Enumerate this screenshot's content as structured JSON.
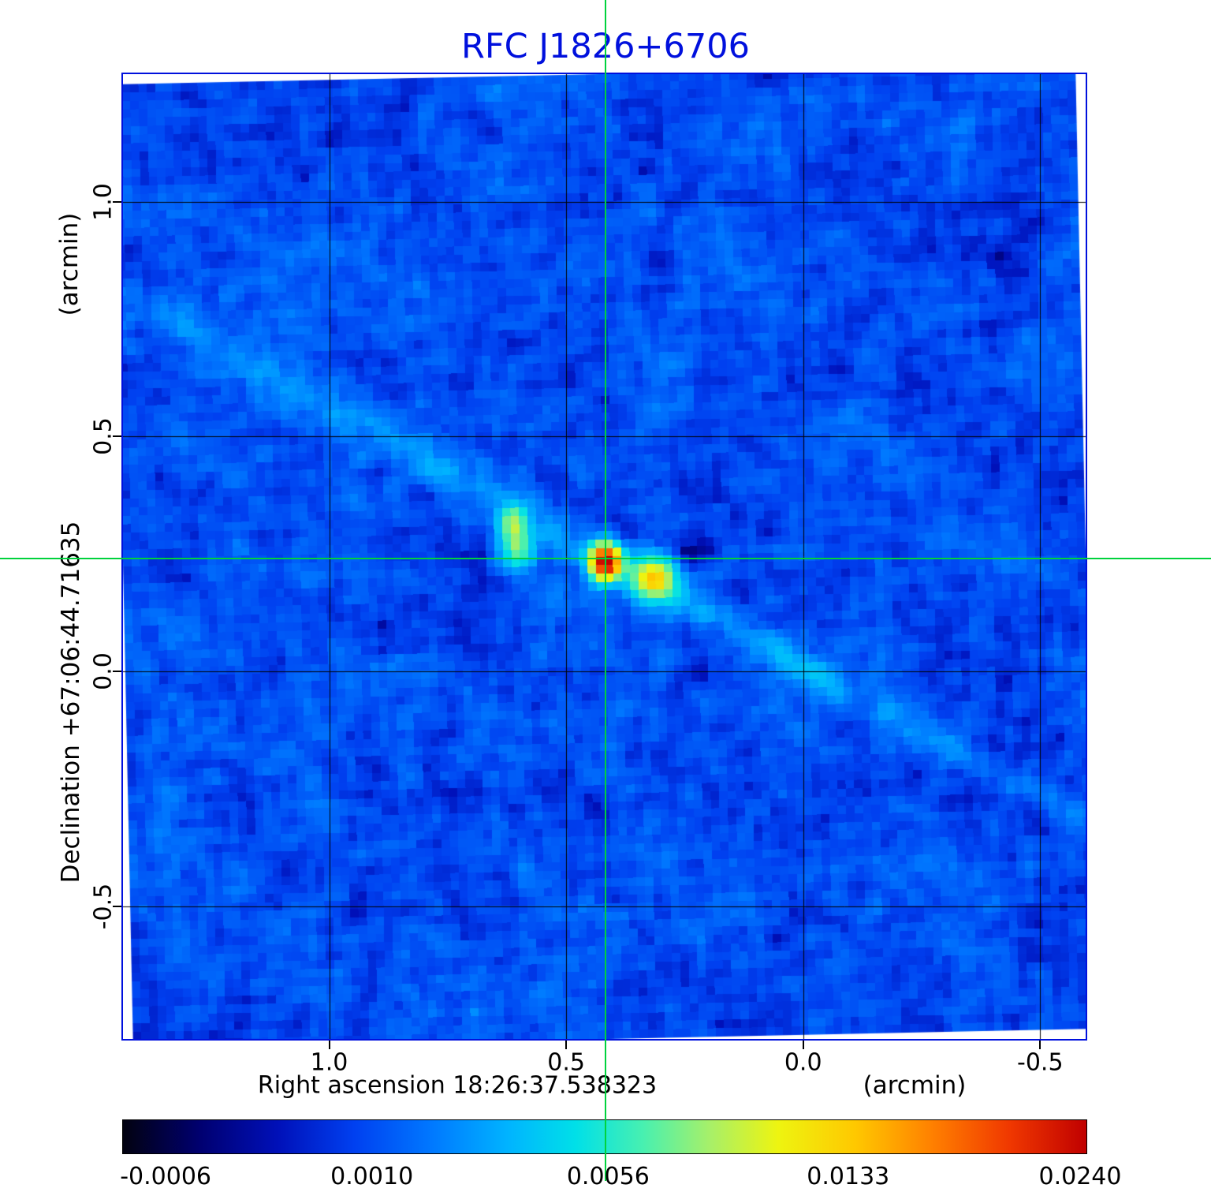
{
  "title": {
    "text": "RFC J1826+6706",
    "color": "#0010dd"
  },
  "axes": {
    "x": {
      "label": "Right ascension  18:26:37.538323",
      "unit": "(arcmin)",
      "tick_labels": [
        "1.0",
        "0.5",
        "0.0",
        "-0.5"
      ]
    },
    "y": {
      "label": "Declination  +67:06:44.71635",
      "unit": "(arcmin)",
      "tick_labels": [
        "1.0",
        "0.5",
        "0.0",
        "-0.5"
      ]
    }
  },
  "colorbar": {
    "tick_labels": [
      "-0.0006",
      "0.0010",
      "0.0056",
      "0.0133",
      "0.0240"
    ]
  },
  "chart_data": {
    "type": "heatmap",
    "title": "RFC J1826+6706",
    "xlabel": "Right ascension 18:26:37.538323 (arcmin)",
    "ylabel": "Declination +67:06:44.71635 (arcmin)",
    "x_ticks": [
      1.0,
      0.5,
      0.0,
      -0.5
    ],
    "y_ticks": [
      1.0,
      0.5,
      0.0,
      -0.5
    ],
    "x_tick_labels": [
      "1.0",
      "0.5",
      "0.0",
      "-0.5"
    ],
    "y_tick_labels": [
      "1.0",
      "0.5",
      "0.0",
      "-0.5"
    ],
    "x_range": [
      1.435,
      -0.596
    ],
    "y_range": [
      1.272,
      -0.783
    ],
    "grid": true,
    "crosshair": {
      "x": 0.417,
      "y": 0.24,
      "color": "#00d23c"
    },
    "color_scale": {
      "vmin": -0.00065,
      "vmax": 0.024,
      "transform": "sqrt",
      "tick_values": [
        -0.0006,
        0.001,
        0.0056,
        0.0133,
        0.024
      ],
      "tick_labels": [
        "-0.0006",
        "0.0010",
        "0.0056",
        "0.0133",
        "0.0240"
      ]
    },
    "colormap_stops": [
      [
        0.0,
        "#020210"
      ],
      [
        0.08,
        "#000070"
      ],
      [
        0.16,
        "#0010b8"
      ],
      [
        0.24,
        "#0040f0"
      ],
      [
        0.32,
        "#0078ff"
      ],
      [
        0.4,
        "#00b4ff"
      ],
      [
        0.47,
        "#00e0e8"
      ],
      [
        0.54,
        "#48f0b0"
      ],
      [
        0.61,
        "#a8f068"
      ],
      [
        0.68,
        "#eef410"
      ],
      [
        0.76,
        "#ffc800"
      ],
      [
        0.84,
        "#ff8000"
      ],
      [
        0.92,
        "#f03800"
      ],
      [
        1.0,
        "#c00000"
      ]
    ],
    "noise": {
      "mean": 0.001,
      "seed": 77,
      "cells": 114,
      "fine_amp": 0.0005,
      "mid_amp": 0.00045,
      "broad_amp": 0.0003
    },
    "raster_rotation_deg": 1.2,
    "sources": [
      {
        "name": "core",
        "x": 0.417,
        "y": 0.233,
        "amp": 0.0245,
        "sx": 0.021,
        "sy": 0.024
      },
      {
        "name": "knot-east-north",
        "x": 0.61,
        "y": 0.317,
        "amp": 0.0066,
        "sx": 0.022,
        "sy": 0.028
      },
      {
        "name": "knot-east-south",
        "x": 0.603,
        "y": 0.258,
        "amp": 0.0058,
        "sx": 0.024,
        "sy": 0.026
      },
      {
        "name": "knot-west",
        "x": 0.317,
        "y": 0.196,
        "amp": 0.0108,
        "sx": 0.03,
        "sy": 0.03
      },
      {
        "name": "dip-west",
        "x": 0.234,
        "y": 0.257,
        "amp": -0.0011,
        "sx": 0.03,
        "sy": 0.025
      },
      {
        "name": "dip-core-east",
        "x": 0.483,
        "y": 0.307,
        "amp": -0.0009,
        "sx": 0.022,
        "sy": 0.02
      }
    ],
    "streak": {
      "through": {
        "x": 0.417,
        "y": 0.24
      },
      "screen_slope": 0.57,
      "amp": 0.0017,
      "sigma_frac": 0.013,
      "length_sigma_frac": 0.42
    }
  }
}
